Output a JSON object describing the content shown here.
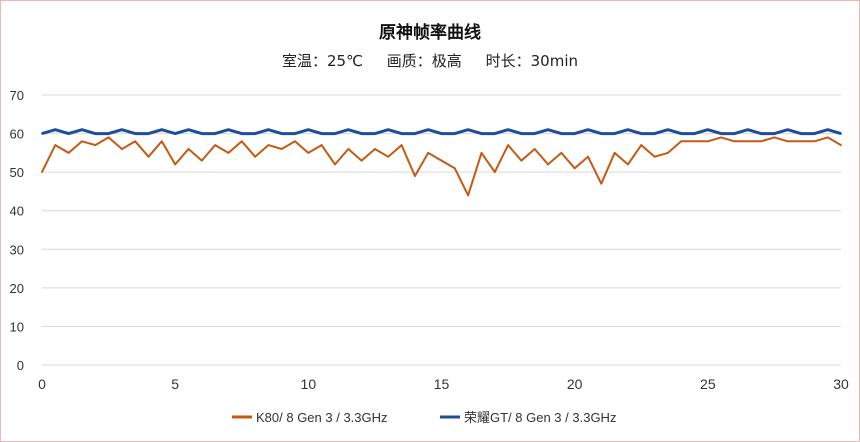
{
  "chart_data": {
    "type": "line",
    "title": "原神帧率曲线",
    "subtitle": "室温：25℃     画质：极高     时长：30min",
    "xlim": [
      0,
      30
    ],
    "ylim": [
      0,
      70
    ],
    "xticks": [
      "0",
      "5",
      "10",
      "15",
      "20",
      "25",
      "30"
    ],
    "yticks": [
      "0",
      "10",
      "20",
      "30",
      "40",
      "50",
      "60",
      "70"
    ],
    "grid": "horizontal",
    "legend_position": "bottom",
    "series": [
      {
        "name": "K80/ 8 Gen 3 / 3.3GHz",
        "color": "#c55a11",
        "x": [
          0,
          0.5,
          1,
          1.5,
          2,
          2.5,
          3,
          3.5,
          4,
          4.5,
          5,
          5.5,
          6,
          6.5,
          7,
          7.5,
          8,
          8.5,
          9,
          9.5,
          10,
          10.5,
          11,
          11.5,
          12,
          12.5,
          13,
          13.5,
          14,
          14.5,
          15,
          15.5,
          16,
          16.5,
          17,
          17.5,
          18,
          18.5,
          19,
          19.5,
          20,
          20.5,
          21,
          21.5,
          22,
          22.5,
          23,
          23.5,
          24,
          24.5,
          25,
          25.5,
          26,
          26.5,
          27,
          27.5,
          28,
          28.5,
          29,
          29.5,
          30
        ],
        "values": [
          50,
          57,
          55,
          58,
          57,
          59,
          56,
          58,
          54,
          58,
          52,
          56,
          53,
          57,
          55,
          58,
          54,
          57,
          56,
          58,
          55,
          57,
          52,
          56,
          53,
          56,
          54,
          57,
          49,
          55,
          53,
          51,
          44,
          55,
          50,
          57,
          53,
          56,
          52,
          55,
          51,
          54,
          47,
          55,
          52,
          57,
          54,
          55,
          58,
          58,
          58,
          59,
          58,
          58,
          58,
          59,
          58,
          58,
          58,
          59,
          57
        ]
      },
      {
        "name": "荣耀GT/ 8 Gen 3 / 3.3GHz",
        "color": "#1f4e99",
        "x": [
          0,
          0.5,
          1,
          1.5,
          2,
          2.5,
          3,
          3.5,
          4,
          4.5,
          5,
          5.5,
          6,
          6.5,
          7,
          7.5,
          8,
          8.5,
          9,
          9.5,
          10,
          10.5,
          11,
          11.5,
          12,
          12.5,
          13,
          13.5,
          14,
          14.5,
          15,
          15.5,
          16,
          16.5,
          17,
          17.5,
          18,
          18.5,
          19,
          19.5,
          20,
          20.5,
          21,
          21.5,
          22,
          22.5,
          23,
          23.5,
          24,
          24.5,
          25,
          25.5,
          26,
          26.5,
          27,
          27.5,
          28,
          28.5,
          29,
          29.5,
          30
        ],
        "values": [
          60,
          61,
          60,
          61,
          60,
          60,
          61,
          60,
          60,
          61,
          60,
          61,
          60,
          60,
          61,
          60,
          60,
          61,
          60,
          60,
          61,
          60,
          60,
          61,
          60,
          60,
          61,
          60,
          60,
          61,
          60,
          60,
          61,
          60,
          60,
          61,
          60,
          60,
          61,
          60,
          60,
          61,
          60,
          60,
          61,
          60,
          60,
          61,
          60,
          60,
          61,
          60,
          60,
          61,
          60,
          60,
          61,
          60,
          60,
          61,
          60
        ]
      }
    ]
  }
}
